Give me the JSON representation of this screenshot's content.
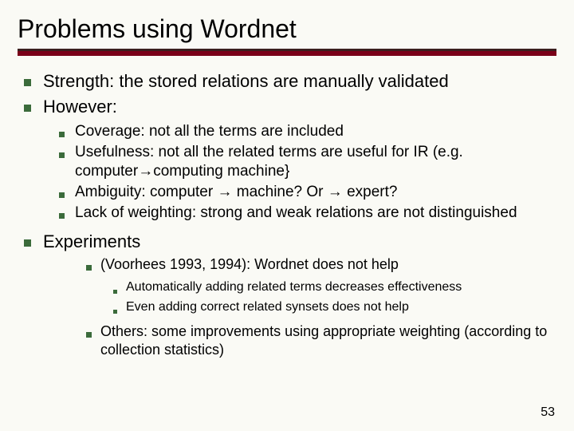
{
  "title": "Problems using Wordnet",
  "colors": {
    "background": "#fafaf5",
    "rule_dark": "#3b1f1f",
    "rule_red": "#7a0019",
    "bullet": "#3b6b3b",
    "text": "#000000"
  },
  "fontsize": {
    "title": 32,
    "lvl1": 22,
    "lvl2": 19,
    "lvl3": 18,
    "lvl4": 16
  },
  "b1": [
    "Strength: the stored relations are manually validated",
    "However:"
  ],
  "b2a": [
    "Coverage: not all the terms are included",
    "Usefulness: not all the related terms are useful for IR (e.g. computer→computing machine}",
    "Ambiguity: computer → machine? Or → expert?",
    "Lack of weighting: strong and weak relations are not distinguished"
  ],
  "b1b": "Experiments",
  "b2b0": "(Voorhees 1993, 1994): Wordnet does not help",
  "b3": [
    "Automatically adding related terms decreases effectiveness",
    "Even adding correct related synsets does not help"
  ],
  "b2b1": "Others: some improvements using appropriate weighting (according to collection statistics)",
  "page": "53"
}
